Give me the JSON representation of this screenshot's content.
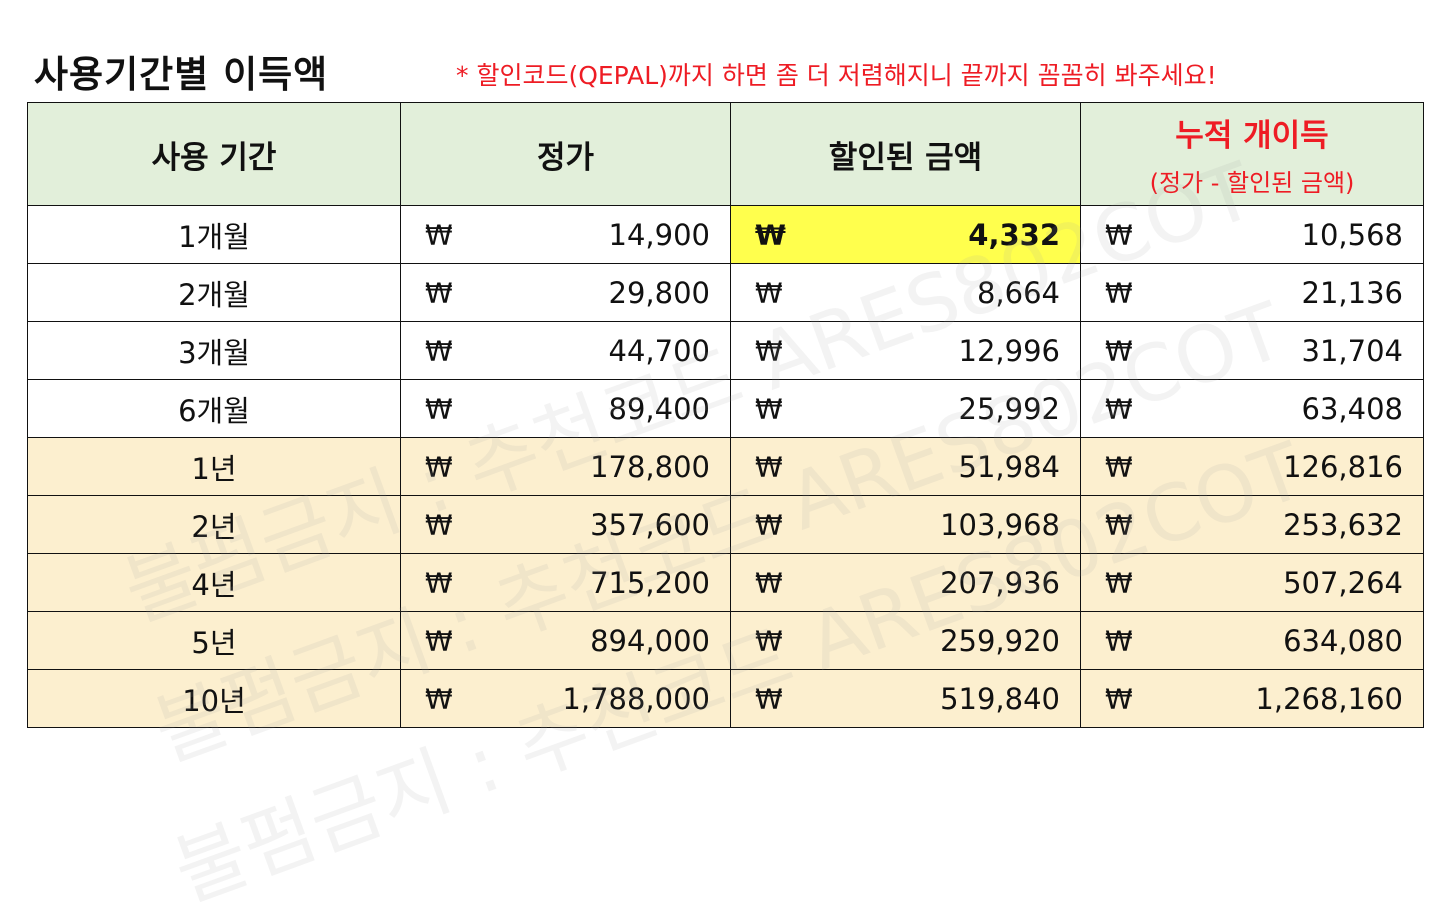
{
  "title": "사용기간별 이득액",
  "notice": "* 할인코드(QEPAL)까지 하면 좀 더 저렴해지니 끝까지 꼼꼼히 봐주세요!",
  "headers": {
    "period": "사용 기간",
    "list_price": "정가",
    "discounted": "할인된 금액",
    "savings": "누적 개이득",
    "savings_sub": "(정가 - 할인된 금액)"
  },
  "currency_symbol": "₩",
  "rows": [
    {
      "period": "1개월",
      "list_price": "14,900",
      "discounted": "4,332",
      "savings": "10,568"
    },
    {
      "period": "2개월",
      "list_price": "29,800",
      "discounted": "8,664",
      "savings": "21,136"
    },
    {
      "period": "3개월",
      "list_price": "44,700",
      "discounted": "12,996",
      "savings": "31,704"
    },
    {
      "period": "6개월",
      "list_price": "89,400",
      "discounted": "25,992",
      "savings": "63,408"
    },
    {
      "period": "1년",
      "list_price": "178,800",
      "discounted": "51,984",
      "savings": "126,816"
    },
    {
      "period": "2년",
      "list_price": "357,600",
      "discounted": "103,968",
      "savings": "253,632"
    },
    {
      "period": "4년",
      "list_price": "715,200",
      "discounted": "207,936",
      "savings": "507,264"
    },
    {
      "period": "5년",
      "list_price": "894,000",
      "discounted": "259,920",
      "savings": "634,080"
    },
    {
      "period": "10년",
      "list_price": "1,788,000",
      "discounted": "519,840",
      "savings": "1,268,160"
    }
  ],
  "watermarks": [
    "불펌금지 : 추천코드 ARES802COT",
    "불펌금지 : 추천코드 ARES802COT",
    "불펌금지 : 추천코드 ARES802COT"
  ],
  "colors": {
    "header_bg": "#e2efda",
    "year_row_bg": "#fcefcf",
    "highlight_bg": "#ffff4d",
    "accent_red": "#ee1c24"
  }
}
